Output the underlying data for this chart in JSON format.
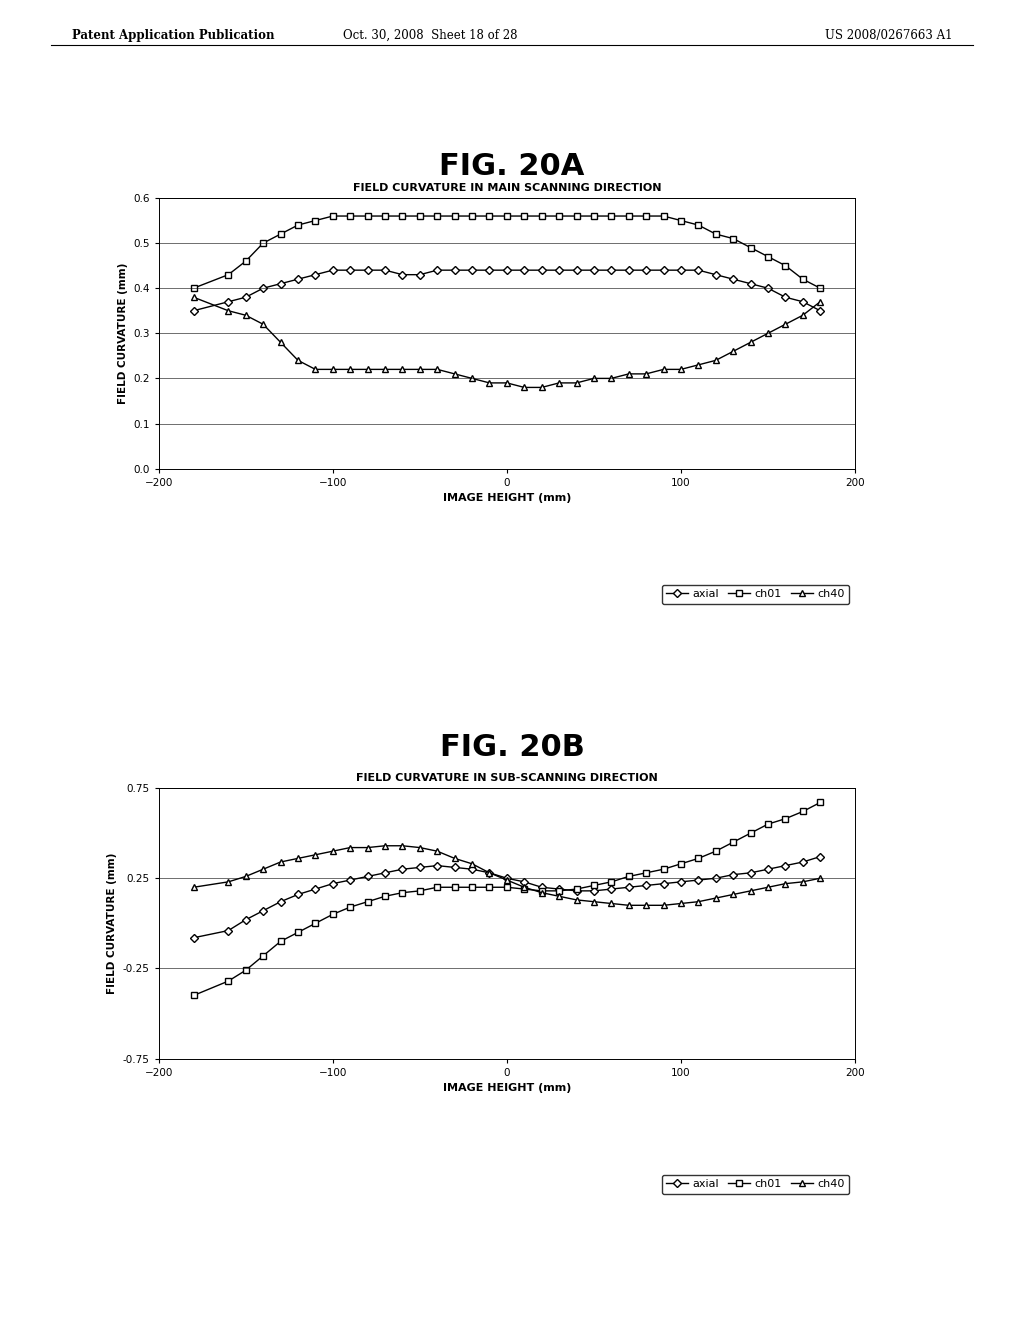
{
  "fig20a": {
    "title": "FIG. 20A",
    "subtitle": "FIELD CURVATURE IN MAIN SCANNING DIRECTION",
    "xlabel": "IMAGE HEIGHT (mm)",
    "ylabel": "FIELD CURVATURE (mm)",
    "xlim": [
      -200,
      200
    ],
    "ylim": [
      0,
      0.6
    ],
    "yticks": [
      0,
      0.1,
      0.2,
      0.3,
      0.4,
      0.5,
      0.6
    ],
    "xticks": [
      -200,
      -100,
      0,
      100,
      200
    ],
    "axial_x": [
      -180,
      -160,
      -150,
      -140,
      -130,
      -120,
      -110,
      -100,
      -90,
      -80,
      -70,
      -60,
      -50,
      -40,
      -30,
      -20,
      -10,
      0,
      10,
      20,
      30,
      40,
      50,
      60,
      70,
      80,
      90,
      100,
      110,
      120,
      130,
      140,
      150,
      160,
      170,
      180
    ],
    "axial_y": [
      0.35,
      0.37,
      0.38,
      0.4,
      0.41,
      0.42,
      0.43,
      0.44,
      0.44,
      0.44,
      0.44,
      0.43,
      0.43,
      0.44,
      0.44,
      0.44,
      0.44,
      0.44,
      0.44,
      0.44,
      0.44,
      0.44,
      0.44,
      0.44,
      0.44,
      0.44,
      0.44,
      0.44,
      0.44,
      0.43,
      0.42,
      0.41,
      0.4,
      0.38,
      0.37,
      0.35
    ],
    "ch01_x": [
      -180,
      -160,
      -150,
      -140,
      -130,
      -120,
      -110,
      -100,
      -90,
      -80,
      -70,
      -60,
      -50,
      -40,
      -30,
      -20,
      -10,
      0,
      10,
      20,
      30,
      40,
      50,
      60,
      70,
      80,
      90,
      100,
      110,
      120,
      130,
      140,
      150,
      160,
      170,
      180
    ],
    "ch01_y": [
      0.4,
      0.43,
      0.46,
      0.5,
      0.52,
      0.54,
      0.55,
      0.56,
      0.56,
      0.56,
      0.56,
      0.56,
      0.56,
      0.56,
      0.56,
      0.56,
      0.56,
      0.56,
      0.56,
      0.56,
      0.56,
      0.56,
      0.56,
      0.56,
      0.56,
      0.56,
      0.56,
      0.55,
      0.54,
      0.52,
      0.51,
      0.49,
      0.47,
      0.45,
      0.42,
      0.4
    ],
    "ch40_x": [
      -180,
      -160,
      -150,
      -140,
      -130,
      -120,
      -110,
      -100,
      -90,
      -80,
      -70,
      -60,
      -50,
      -40,
      -30,
      -20,
      -10,
      0,
      10,
      20,
      30,
      40,
      50,
      60,
      70,
      80,
      90,
      100,
      110,
      120,
      130,
      140,
      150,
      160,
      170,
      180
    ],
    "ch40_y": [
      0.38,
      0.35,
      0.34,
      0.32,
      0.28,
      0.24,
      0.22,
      0.22,
      0.22,
      0.22,
      0.22,
      0.22,
      0.22,
      0.22,
      0.21,
      0.2,
      0.19,
      0.19,
      0.18,
      0.18,
      0.19,
      0.19,
      0.2,
      0.2,
      0.21,
      0.21,
      0.22,
      0.22,
      0.23,
      0.24,
      0.26,
      0.28,
      0.3,
      0.32,
      0.34,
      0.37
    ]
  },
  "fig20b": {
    "title": "FIG. 20B",
    "subtitle": "FIELD CURVATURE IN SUB-SCANNING DIRECTION",
    "xlabel": "IMAGE HEIGHT (mm)",
    "ylabel": "FIELD CURVATURE (mm)",
    "xlim": [
      -200,
      200
    ],
    "ylim": [
      -0.75,
      0.75
    ],
    "yticks": [
      -0.75,
      -0.25,
      0.25,
      0.75
    ],
    "xticks": [
      -200,
      -100,
      0,
      100,
      200
    ],
    "axial_x": [
      -180,
      -160,
      -150,
      -140,
      -130,
      -120,
      -110,
      -100,
      -90,
      -80,
      -70,
      -60,
      -50,
      -40,
      -30,
      -20,
      -10,
      0,
      10,
      20,
      30,
      40,
      50,
      60,
      70,
      80,
      90,
      100,
      110,
      120,
      130,
      140,
      150,
      160,
      170,
      180
    ],
    "axial_y": [
      -0.08,
      -0.04,
      0.02,
      0.07,
      0.12,
      0.16,
      0.19,
      0.22,
      0.24,
      0.26,
      0.28,
      0.3,
      0.31,
      0.32,
      0.31,
      0.3,
      0.28,
      0.25,
      0.23,
      0.2,
      0.19,
      0.18,
      0.18,
      0.19,
      0.2,
      0.21,
      0.22,
      0.23,
      0.24,
      0.25,
      0.27,
      0.28,
      0.3,
      0.32,
      0.34,
      0.37
    ],
    "ch01_x": [
      -180,
      -160,
      -150,
      -140,
      -130,
      -120,
      -110,
      -100,
      -90,
      -80,
      -70,
      -60,
      -50,
      -40,
      -30,
      -20,
      -10,
      0,
      10,
      20,
      30,
      40,
      50,
      60,
      70,
      80,
      90,
      100,
      110,
      120,
      130,
      140,
      150,
      160,
      170,
      180
    ],
    "ch01_y": [
      -0.4,
      -0.32,
      -0.26,
      -0.18,
      -0.1,
      -0.05,
      0.0,
      0.05,
      0.09,
      0.12,
      0.15,
      0.17,
      0.18,
      0.2,
      0.2,
      0.2,
      0.2,
      0.2,
      0.19,
      0.18,
      0.18,
      0.19,
      0.21,
      0.23,
      0.26,
      0.28,
      0.3,
      0.33,
      0.36,
      0.4,
      0.45,
      0.5,
      0.55,
      0.58,
      0.62,
      0.67
    ],
    "ch40_x": [
      -180,
      -160,
      -150,
      -140,
      -130,
      -120,
      -110,
      -100,
      -90,
      -80,
      -70,
      -60,
      -50,
      -40,
      -30,
      -20,
      -10,
      0,
      10,
      20,
      30,
      40,
      50,
      60,
      70,
      80,
      90,
      100,
      110,
      120,
      130,
      140,
      150,
      160,
      170,
      180
    ],
    "ch40_y": [
      0.2,
      0.23,
      0.26,
      0.3,
      0.34,
      0.36,
      0.38,
      0.4,
      0.42,
      0.42,
      0.43,
      0.43,
      0.42,
      0.4,
      0.36,
      0.33,
      0.28,
      0.24,
      0.2,
      0.17,
      0.15,
      0.13,
      0.12,
      0.11,
      0.1,
      0.1,
      0.1,
      0.11,
      0.12,
      0.14,
      0.16,
      0.18,
      0.2,
      0.22,
      0.23,
      0.25
    ]
  },
  "header_left": "Patent Application Publication",
  "header_mid": "Oct. 30, 2008  Sheet 18 of 28",
  "header_right": "US 2008/0267663 A1",
  "bg_color": "#ffffff"
}
